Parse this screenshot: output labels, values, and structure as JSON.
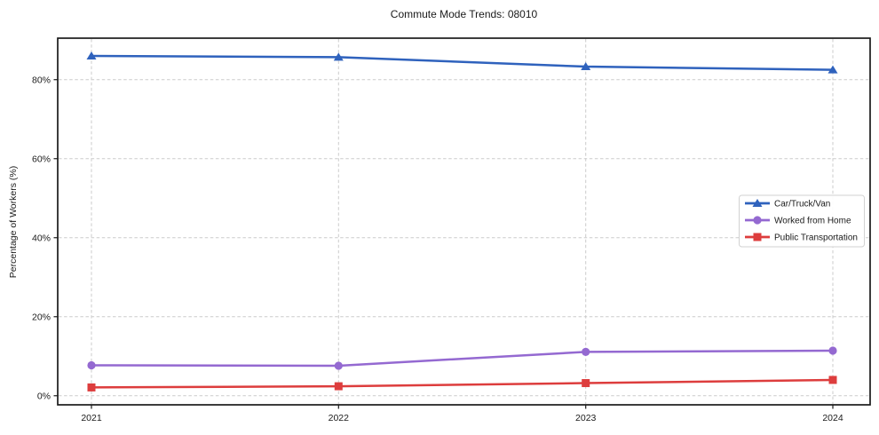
{
  "chart_data": {
    "type": "line",
    "title": "Commute Mode Trends: 08010",
    "xlabel": "",
    "ylabel": "Percentage of Workers (%)",
    "x": [
      "2021",
      "2022",
      "2023",
      "2024"
    ],
    "y_ticks": [
      "0%",
      "20%",
      "40%",
      "60%",
      "80%"
    ],
    "y_tick_values": [
      0,
      20,
      40,
      60,
      80
    ],
    "ylim": [
      -2.3,
      90.5
    ],
    "grid": true,
    "grid_style": "dashed",
    "legend_position": "center-right",
    "series": [
      {
        "name": "Car/Truck/Van",
        "color": "#2f62bd",
        "marker": "triangle",
        "values": [
          86.0,
          85.7,
          83.3,
          82.5
        ]
      },
      {
        "name": "Worked from Home",
        "color": "#9469d1",
        "marker": "circle",
        "values": [
          7.7,
          7.6,
          11.1,
          11.4
        ]
      },
      {
        "name": "Public Transportation",
        "color": "#dd3d3d",
        "marker": "square",
        "values": [
          2.1,
          2.4,
          3.2,
          4.0
        ]
      }
    ]
  }
}
